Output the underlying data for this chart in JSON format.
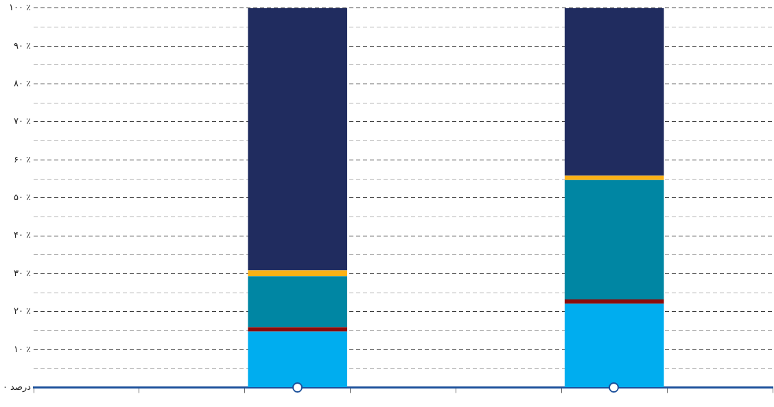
{
  "chart_data": {
    "type": "bar",
    "stacked": true,
    "categories": [
      null,
      null,
      null,
      null,
      null,
      null,
      null
    ],
    "series": [
      {
        "color": "#00adef",
        "values": [
          null,
          null,
          14.8,
          null,
          null,
          22.1,
          null
        ]
      },
      {
        "color": "#8b0a0a",
        "values": [
          null,
          null,
          1.1,
          null,
          null,
          1.1,
          null
        ]
      },
      {
        "color": "#0086a3",
        "values": [
          null,
          null,
          13.4,
          null,
          null,
          31.5,
          null
        ]
      },
      {
        "color": "#fbb116",
        "values": [
          null,
          null,
          1.6,
          null,
          null,
          1.1,
          null
        ]
      },
      {
        "color": "#202c5f",
        "values": [
          null,
          null,
          69.1,
          null,
          null,
          44.2,
          null
        ]
      }
    ],
    "ylim": [
      0,
      100
    ],
    "yticks": [
      {
        "value": 0,
        "label": "۰ درصد"
      },
      {
        "value": 5,
        "label": null
      },
      {
        "value": 10,
        "label": "۱۰ ٪"
      },
      {
        "value": 15,
        "label": null
      },
      {
        "value": 20,
        "label": "۲۰ ٪"
      },
      {
        "value": 25,
        "label": null
      },
      {
        "value": 30,
        "label": "۳۰ ٪"
      },
      {
        "value": 35,
        "label": null
      },
      {
        "value": 40,
        "label": "۴۰ ٪"
      },
      {
        "value": 45,
        "label": null
      },
      {
        "value": 50,
        "label": "۵۰ ٪"
      },
      {
        "value": 55,
        "label": null
      },
      {
        "value": 60,
        "label": "۶۰ ٪"
      },
      {
        "value": 65,
        "label": null
      },
      {
        "value": 70,
        "label": "۷۰ ٪"
      },
      {
        "value": 75,
        "label": null
      },
      {
        "value": 80,
        "label": "۸۰ ٪"
      },
      {
        "value": 85,
        "label": null
      },
      {
        "value": 90,
        "label": "۹۰ ٪"
      },
      {
        "value": 95,
        "label": null
      },
      {
        "value": 100,
        "label": "۱۰۰ ٪"
      }
    ],
    "grid": "y",
    "legend": false
  }
}
